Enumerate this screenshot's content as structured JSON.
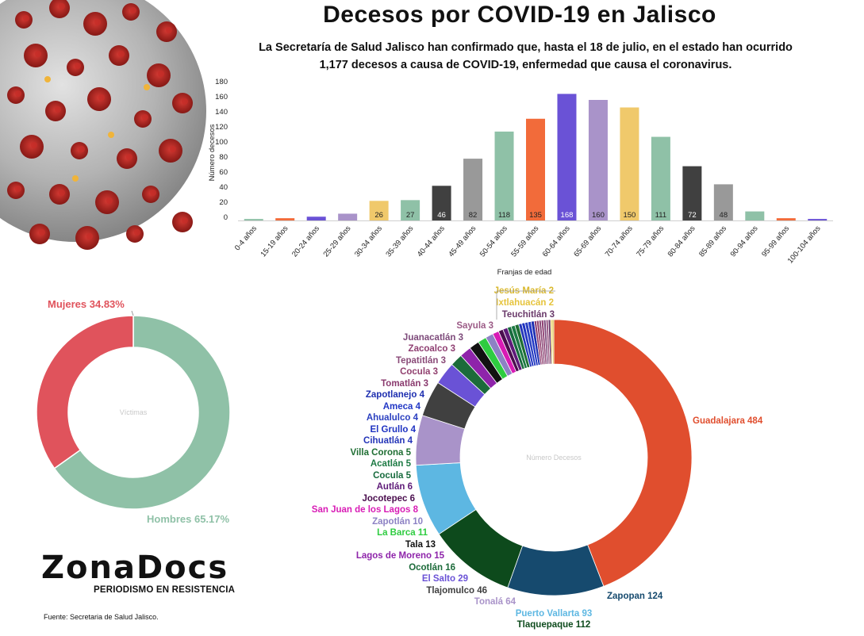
{
  "title": "Decesos por COVID-19 en Jalisco",
  "subtitle_line1": "La Secretaría de Salud  Jalisco han confirmado que, hasta el 18 de julio, en el estado han ocurrido",
  "subtitle_line2": "1,177 decesos a causa de COVID-19, enfermedad que causa el coronavirus.",
  "source": "Fuente: Secretaria de Salud Jalisco.",
  "logo": {
    "word": "ZonaDocs",
    "tagline": "PERIODISMO EN RESISTENCIA"
  },
  "chart_data": [
    {
      "type": "bar",
      "title": "",
      "xlabel": "Franjas de edad",
      "ylabel": "Número decesos",
      "ylim": [
        0,
        180
      ],
      "yticks": [
        0,
        20,
        40,
        60,
        80,
        100,
        120,
        140,
        160,
        180
      ],
      "grid": false,
      "categories": [
        "0-4 años",
        "15-19 años",
        "20-24 años",
        "25-29 años",
        "30-34 años",
        "35-39 años",
        "40-44 años",
        "45-49 años",
        "50-54 años",
        "55-59 años",
        "60-64 años",
        "65-69 años",
        "70-74 años",
        "75-79 años",
        "80-84 años",
        "85-89 años",
        "90-94 años",
        "95-99 años",
        "100-104 años"
      ],
      "values": [
        2,
        3,
        5,
        9,
        26,
        27,
        46,
        82,
        118,
        135,
        168,
        160,
        150,
        111,
        72,
        48,
        12,
        3,
        2
      ],
      "data_labels": [
        "",
        "",
        "",
        "",
        "26",
        "27",
        "46",
        "82",
        "118",
        "135",
        "168",
        "160",
        "150",
        "111",
        "72",
        "48",
        "",
        "",
        ""
      ],
      "colors": [
        "#8fc1a7",
        "#f26b3a",
        "#6a52d6",
        "#a993c9",
        "#f0c96b",
        "#8fc1a7",
        "#404040",
        "#999999",
        "#8fc1a7",
        "#f26b3a",
        "#6a52d6",
        "#a993c9",
        "#f0c96b",
        "#8fc1a7",
        "#404040",
        "#999999",
        "#8fc1a7",
        "#f26b3a",
        "#6a52d6"
      ]
    },
    {
      "type": "pie",
      "title": "",
      "center_label": "Víctimas",
      "slices": [
        {
          "label": "Hombres 65.17%",
          "value": 65.17,
          "color": "#8fc1a7"
        },
        {
          "label": "Mujeres 34.83%",
          "value": 34.83,
          "color": "#e0535c"
        }
      ]
    },
    {
      "type": "pie",
      "title": "",
      "center_label": "Número Decesos",
      "slices": [
        {
          "label": "Guadalajara 484",
          "value": 484,
          "color": "#e04e2e"
        },
        {
          "label": "Zapopan 124",
          "value": 124,
          "color": "#164a6e"
        },
        {
          "label": "Tlaquepaque 112",
          "value": 112,
          "color": "#0d4a1c"
        },
        {
          "label": "Puerto Vallarta 93",
          "value": 93,
          "color": "#5db7e2"
        },
        {
          "label": "Tonalá 64",
          "value": 64,
          "color": "#a993c9"
        },
        {
          "label": "Tlajomulco 46",
          "value": 46,
          "color": "#404040"
        },
        {
          "label": "El Salto 29",
          "value": 29,
          "color": "#6a52d6"
        },
        {
          "label": "Ocotlán 16",
          "value": 16,
          "color": "#1c6b3a"
        },
        {
          "label": "Lagos de Moreno 15",
          "value": 15,
          "color": "#8e24aa"
        },
        {
          "label": "Tala 13",
          "value": 13,
          "color": "#111111"
        },
        {
          "label": "La Barca 11",
          "value": 11,
          "color": "#2ecc40"
        },
        {
          "label": "Zapotlán 10",
          "value": 10,
          "color": "#8d82c4"
        },
        {
          "label": "San Juan de los Lagos 8",
          "value": 8,
          "color": "#d81bb5"
        },
        {
          "label": "Jocotepec 6",
          "value": 6,
          "color": "#4a0e4e"
        },
        {
          "label": "Autlán 6",
          "value": 6,
          "color": "#5e1a78"
        },
        {
          "label": "Cocula 5",
          "value": 5,
          "color": "#176b3d"
        },
        {
          "label": "Acatlán 5",
          "value": 5,
          "color": "#1d7a44"
        },
        {
          "label": "Villa Corona 5",
          "value": 5,
          "color": "#1f6e33"
        },
        {
          "label": "Cihuatlán 4",
          "value": 4,
          "color": "#2435b8"
        },
        {
          "label": "El Grullo 4",
          "value": 4,
          "color": "#1f33c2"
        },
        {
          "label": "Ahualulco 4",
          "value": 4,
          "color": "#2a3fc0"
        },
        {
          "label": "Ameca 4",
          "value": 4,
          "color": "#2238c6"
        },
        {
          "label": "Zapotlanejo 4",
          "value": 4,
          "color": "#1e2fb0"
        },
        {
          "label": "Tomatlán 3",
          "value": 3,
          "color": "#8a3a6e"
        },
        {
          "label": "Cocula 3",
          "value": 3,
          "color": "#91406f"
        },
        {
          "label": "Tepatitlán 3",
          "value": 3,
          "color": "#8a4a78"
        },
        {
          "label": "Zacoalco 3",
          "value": 3,
          "color": "#8f3f72"
        },
        {
          "label": "Juanacatlán 3",
          "value": 3,
          "color": "#7d4a7a"
        },
        {
          "label": "Sayula 3",
          "value": 3,
          "color": "#9b5a86"
        },
        {
          "label": "Teuchitlán 3",
          "value": 3,
          "color": "#6a3a6a"
        },
        {
          "label": "Ixtlahuacán 2",
          "value": 2,
          "color": "#e6c43c"
        },
        {
          "label": "Jesús María 2",
          "value": 2,
          "color": "#d9b82e"
        }
      ]
    }
  ]
}
